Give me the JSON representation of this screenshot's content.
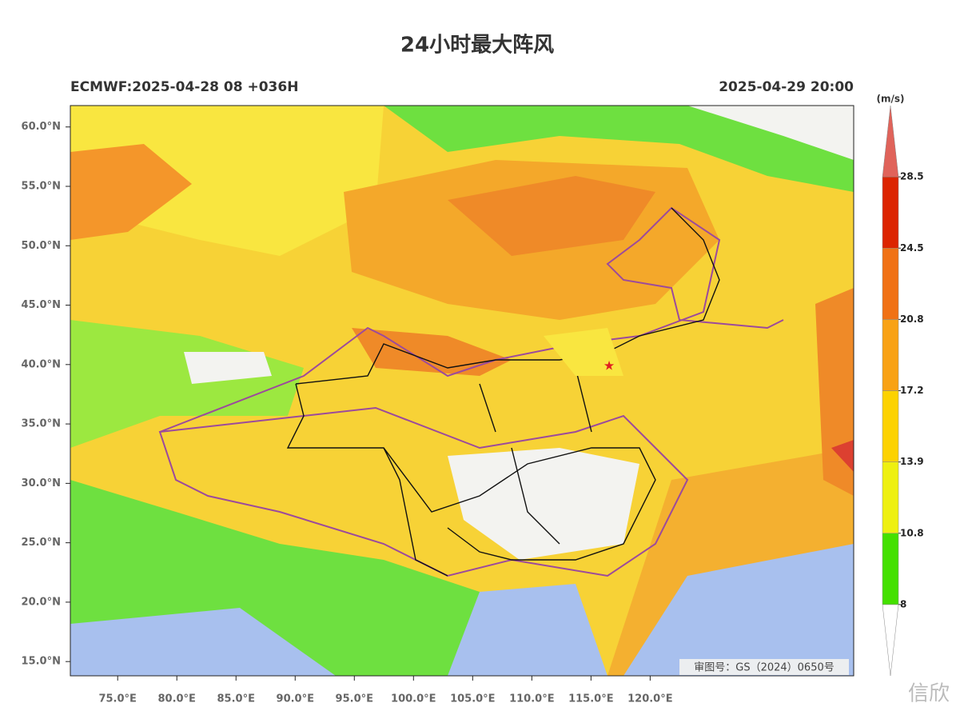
{
  "map": {
    "title": "24小时最大阵风",
    "subtitle_left": "ECMWF:2025-04-28 08 +036H",
    "subtitle_right": "2025-04-29 20:00",
    "lon_range": [
      71,
      137.2
    ],
    "lat_range": [
      13.8,
      61.8
    ],
    "lat_ticks": [
      {
        "value": 60,
        "label": "60.0°N"
      },
      {
        "value": 55,
        "label": "55.0°N"
      },
      {
        "value": 50,
        "label": "50.0°N"
      },
      {
        "value": 45,
        "label": "45.0°N"
      },
      {
        "value": 40,
        "label": "40.0°N"
      },
      {
        "value": 35,
        "label": "35.0°N"
      },
      {
        "value": 30,
        "label": "30.0°N"
      },
      {
        "value": 25,
        "label": "25.0°N"
      },
      {
        "value": 20,
        "label": "20.0°N"
      },
      {
        "value": 15,
        "label": "15.0°N"
      }
    ],
    "lon_ticks": [
      {
        "value": 75,
        "label": "75.0°E"
      },
      {
        "value": 80,
        "label": "80.0°E"
      },
      {
        "value": 85,
        "label": "85.0°E"
      },
      {
        "value": 90,
        "label": "90.0°E"
      },
      {
        "value": 95,
        "label": "95.0°E"
      },
      {
        "value": 100,
        "label": "100.0°E"
      },
      {
        "value": 105,
        "label": "105.0°E"
      },
      {
        "value": 110,
        "label": "110.0°E"
      },
      {
        "value": 115,
        "label": "115.0°E"
      },
      {
        "value": 120,
        "label": "120.0°E"
      }
    ],
    "review_number": "审图号：GS（2024）0650号",
    "watermark": "信欣",
    "colorbar": {
      "unit": "(m/s)",
      "levels": [
        8,
        10.8,
        13.9,
        17.2,
        20.8,
        24.5,
        28.5
      ],
      "colors": [
        "#ffffff",
        "#44e000",
        "#eef010",
        "#fcd200",
        "#f8a214",
        "#f07214",
        "#dc2400",
        "#e0635a"
      ]
    }
  }
}
